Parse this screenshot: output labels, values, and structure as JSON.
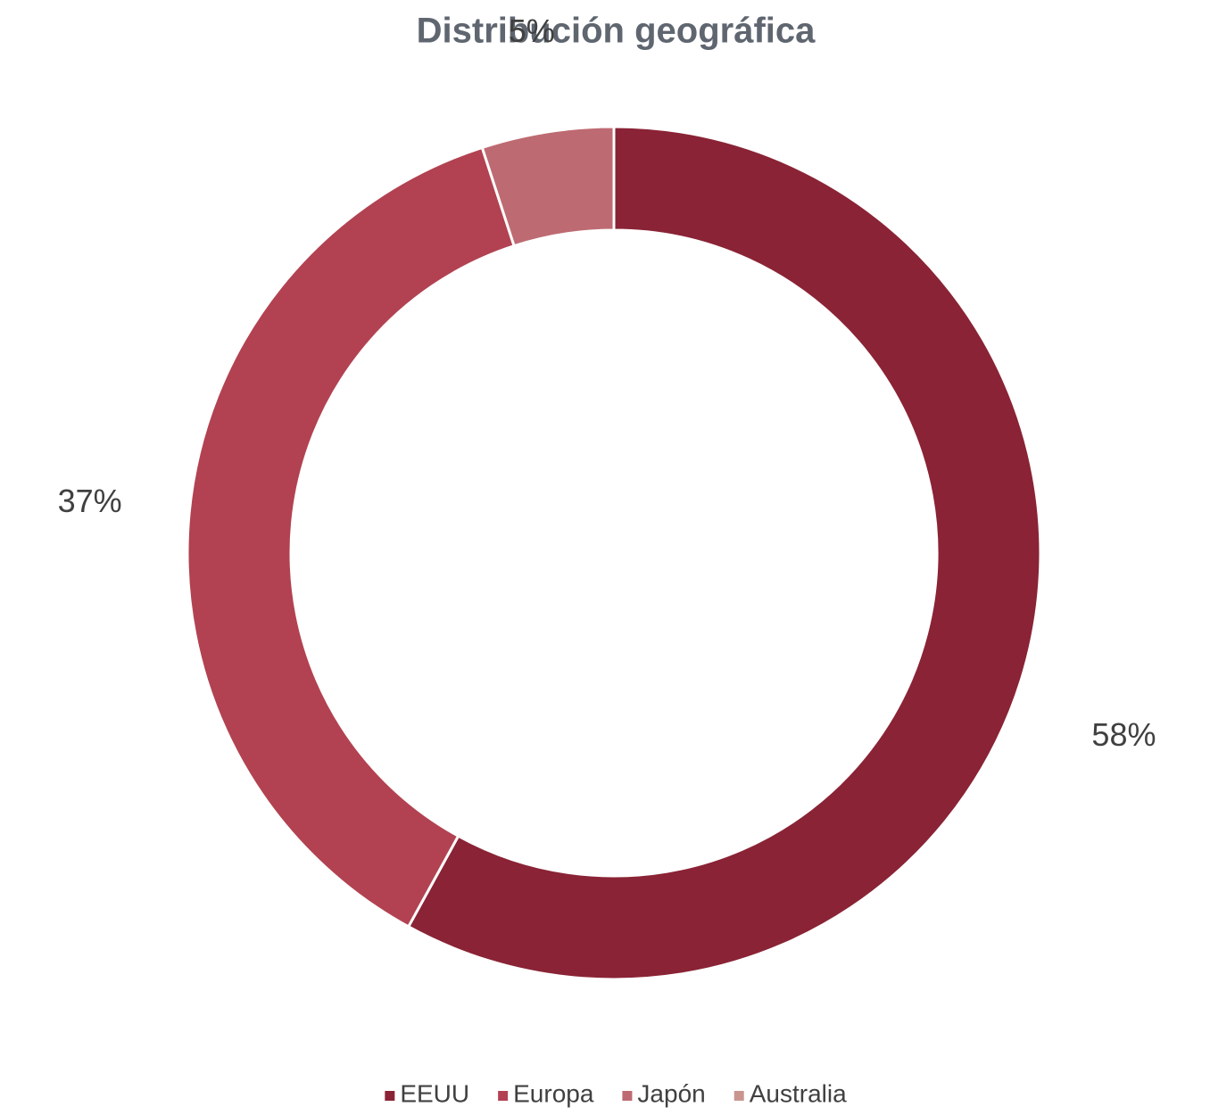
{
  "chart_data": {
    "type": "donut",
    "title": "Distribución geográfica",
    "categories": [
      "EEUU",
      "Europa",
      "Japón",
      "Australia"
    ],
    "values": [
      58,
      37,
      5,
      0
    ],
    "value_labels": [
      "58%",
      "37%",
      "5%",
      null
    ],
    "colors": [
      "#8a2335",
      "#b24251",
      "#be6a72",
      "#c9968f"
    ],
    "legend": "bottom"
  }
}
